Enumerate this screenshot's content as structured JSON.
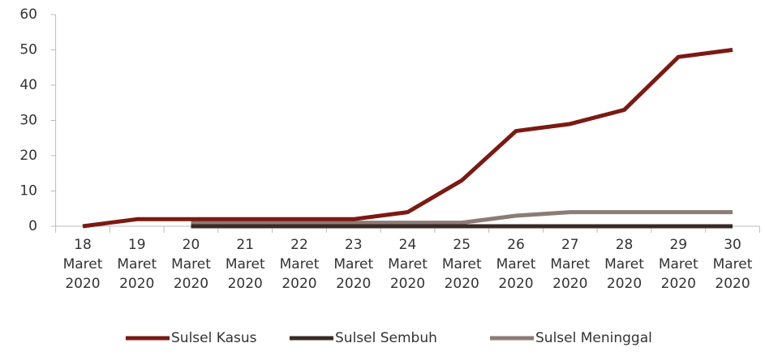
{
  "chart_data": {
    "type": "line",
    "categories": [
      [
        "18",
        "Maret",
        "2020"
      ],
      [
        "19",
        "Maret",
        "2020"
      ],
      [
        "20",
        "Maret",
        "2020"
      ],
      [
        "21",
        "Maret",
        "2020"
      ],
      [
        "22",
        "Maret",
        "2020"
      ],
      [
        "23",
        "Maret",
        "2020"
      ],
      [
        "24",
        "Maret",
        "2020"
      ],
      [
        "25",
        "Maret",
        "2020"
      ],
      [
        "26",
        "Maret",
        "2020"
      ],
      [
        "27",
        "Maret",
        "2020"
      ],
      [
        "28",
        "Maret",
        "2020"
      ],
      [
        "29",
        "Maret",
        "2020"
      ],
      [
        "30",
        "Maret",
        "2020"
      ]
    ],
    "series": [
      {
        "name": "Sulsel Kasus",
        "color": "#7b1a12",
        "values": [
          0,
          2,
          2,
          2,
          2,
          2,
          4,
          13,
          27,
          29,
          33,
          48,
          50
        ]
      },
      {
        "name": "Sulsel Sembuh",
        "color": "#3a2a26",
        "values": [
          null,
          null,
          0,
          0,
          0,
          0,
          0,
          0,
          0,
          0,
          0,
          0,
          0
        ]
      },
      {
        "name": "Sulsel Meninggal",
        "color": "#8c7b76",
        "values": [
          null,
          null,
          1,
          1,
          1,
          1,
          1,
          1,
          3,
          4,
          4,
          4,
          4
        ]
      }
    ],
    "ylim": [
      0,
      60
    ],
    "yticks": [
      0,
      10,
      20,
      30,
      40,
      50,
      60
    ],
    "legend": "bottom"
  }
}
